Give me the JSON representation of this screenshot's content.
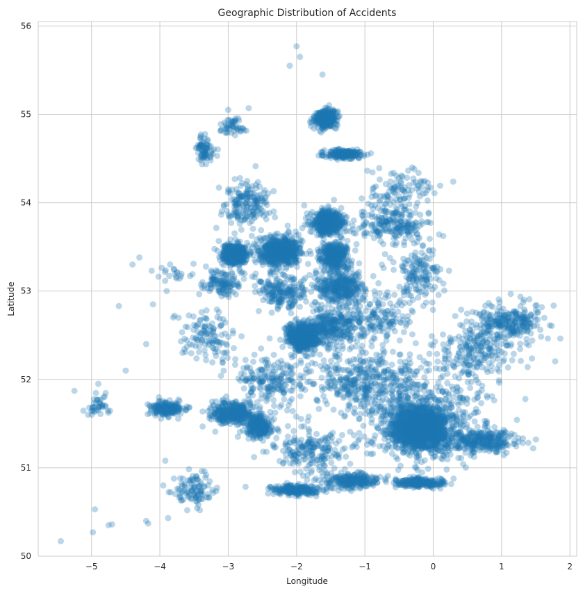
{
  "chart_data": {
    "type": "scatter",
    "title": "Geographic Distribution of Accidents",
    "xlabel": "Longitude",
    "ylabel": "Latitude",
    "xlim": [
      -5.78,
      2.1
    ],
    "ylim": [
      50.0,
      56.05
    ],
    "x_ticks": [
      -5,
      -4,
      -3,
      -2,
      -1,
      0,
      1,
      2
    ],
    "x_tick_labels": [
      "−5",
      "−4",
      "−3",
      "−2",
      "−1",
      "0",
      "1",
      "2"
    ],
    "y_ticks": [
      50,
      51,
      52,
      53,
      54,
      55,
      56
    ],
    "y_tick_labels": [
      "50",
      "51",
      "52",
      "53",
      "54",
      "55",
      "56"
    ],
    "grid": true,
    "marker_color": "#1f77b4",
    "marker_alpha": 0.3,
    "clusters": [
      {
        "lon": -0.2,
        "lat": 51.45,
        "count": 1800,
        "spread_lon": 0.35,
        "spread_lat": 0.22
      },
      {
        "lon": -0.15,
        "lat": 51.55,
        "count": 600,
        "spread_lon": 0.9,
        "spread_lat": 0.45
      },
      {
        "lon": 0.7,
        "lat": 51.3,
        "count": 300,
        "spread_lon": 0.55,
        "spread_lat": 0.12
      },
      {
        "lon": 1.1,
        "lat": 52.65,
        "count": 260,
        "spread_lon": 0.45,
        "spread_lat": 0.2
      },
      {
        "lon": 0.6,
        "lat": 52.3,
        "count": 220,
        "spread_lon": 0.6,
        "spread_lat": 0.3
      },
      {
        "lon": -1.9,
        "lat": 52.48,
        "count": 700,
        "spread_lon": 0.22,
        "spread_lat": 0.14
      },
      {
        "lon": -1.5,
        "lat": 52.6,
        "count": 250,
        "spread_lon": 0.35,
        "spread_lat": 0.2
      },
      {
        "lon": -2.25,
        "lat": 53.45,
        "count": 650,
        "spread_lon": 0.3,
        "spread_lat": 0.16
      },
      {
        "lon": -2.9,
        "lat": 53.42,
        "count": 400,
        "spread_lon": 0.2,
        "spread_lat": 0.12
      },
      {
        "lon": -1.55,
        "lat": 53.78,
        "count": 500,
        "spread_lon": 0.22,
        "spread_lat": 0.14
      },
      {
        "lon": -1.45,
        "lat": 53.4,
        "count": 400,
        "spread_lon": 0.2,
        "spread_lat": 0.15
      },
      {
        "lon": -1.4,
        "lat": 53.05,
        "count": 350,
        "spread_lon": 0.35,
        "spread_lat": 0.2
      },
      {
        "lon": -1.58,
        "lat": 54.95,
        "count": 350,
        "spread_lon": 0.15,
        "spread_lat": 0.1
      },
      {
        "lon": -1.3,
        "lat": 54.55,
        "count": 200,
        "spread_lon": 0.25,
        "spread_lat": 0.05
      },
      {
        "lon": -2.95,
        "lat": 51.62,
        "count": 350,
        "spread_lon": 0.3,
        "spread_lat": 0.12
      },
      {
        "lon": -3.9,
        "lat": 51.67,
        "count": 200,
        "spread_lon": 0.25,
        "spread_lat": 0.08
      },
      {
        "lon": -2.55,
        "lat": 51.47,
        "count": 250,
        "spread_lon": 0.2,
        "spread_lat": 0.12
      },
      {
        "lon": -2.0,
        "lat": 50.75,
        "count": 220,
        "spread_lon": 0.35,
        "spread_lat": 0.06
      },
      {
        "lon": -1.2,
        "lat": 50.85,
        "count": 250,
        "spread_lon": 0.4,
        "spread_lat": 0.08
      },
      {
        "lon": -0.2,
        "lat": 50.83,
        "count": 250,
        "spread_lon": 0.35,
        "spread_lat": 0.05
      },
      {
        "lon": -3.5,
        "lat": 50.75,
        "count": 100,
        "spread_lon": 0.3,
        "spread_lat": 0.2
      },
      {
        "lon": -4.9,
        "lat": 51.7,
        "count": 40,
        "spread_lon": 0.2,
        "spread_lat": 0.1
      },
      {
        "lon": -3.3,
        "lat": 52.5,
        "count": 120,
        "spread_lon": 0.4,
        "spread_lat": 0.3
      },
      {
        "lon": -3.1,
        "lat": 53.1,
        "count": 120,
        "spread_lon": 0.25,
        "spread_lat": 0.15
      },
      {
        "lon": -2.75,
        "lat": 54.0,
        "count": 180,
        "spread_lon": 0.35,
        "spread_lat": 0.25
      },
      {
        "lon": -3.35,
        "lat": 54.6,
        "count": 80,
        "spread_lon": 0.15,
        "spread_lat": 0.15
      },
      {
        "lon": -2.95,
        "lat": 54.85,
        "count": 50,
        "spread_lon": 0.2,
        "spread_lat": 0.1
      },
      {
        "lon": -0.6,
        "lat": 53.75,
        "count": 220,
        "spread_lon": 0.55,
        "spread_lat": 0.2
      },
      {
        "lon": -0.2,
        "lat": 53.2,
        "count": 150,
        "spread_lon": 0.35,
        "spread_lat": 0.3
      },
      {
        "lon": -0.5,
        "lat": 54.15,
        "count": 100,
        "spread_lon": 0.5,
        "spread_lat": 0.2
      },
      {
        "lon": -1.0,
        "lat": 52.0,
        "count": 400,
        "spread_lon": 0.9,
        "spread_lat": 0.35
      },
      {
        "lon": -2.4,
        "lat": 52.0,
        "count": 200,
        "spread_lon": 0.5,
        "spread_lat": 0.3
      },
      {
        "lon": -0.9,
        "lat": 52.7,
        "count": 200,
        "spread_lon": 0.6,
        "spread_lat": 0.3
      },
      {
        "lon": -2.2,
        "lat": 53.0,
        "count": 200,
        "spread_lon": 0.35,
        "spread_lat": 0.2
      },
      {
        "lon": -1.8,
        "lat": 51.2,
        "count": 200,
        "spread_lon": 0.6,
        "spread_lat": 0.25
      },
      {
        "lon": -3.8,
        "lat": 53.2,
        "count": 20,
        "spread_lon": 0.4,
        "spread_lat": 0.1
      }
    ],
    "outliers": [
      {
        "lon": -5.45,
        "lat": 50.17
      },
      {
        "lon": -4.98,
        "lat": 50.27
      },
      {
        "lon": -4.95,
        "lat": 50.53
      },
      {
        "lon": -4.75,
        "lat": 50.35
      },
      {
        "lon": -4.7,
        "lat": 50.36
      },
      {
        "lon": -4.17,
        "lat": 50.37
      },
      {
        "lon": -4.2,
        "lat": 50.4
      },
      {
        "lon": -3.88,
        "lat": 50.43
      },
      {
        "lon": -3.6,
        "lat": 50.52
      },
      {
        "lon": -5.05,
        "lat": 51.6
      },
      {
        "lon": -4.3,
        "lat": 53.38
      },
      {
        "lon": -4.4,
        "lat": 53.3
      },
      {
        "lon": -4.12,
        "lat": 53.23
      },
      {
        "lon": -3.85,
        "lat": 53.3
      },
      {
        "lon": -4.6,
        "lat": 52.83
      },
      {
        "lon": -4.1,
        "lat": 52.85
      },
      {
        "lon": -3.9,
        "lat": 53.0
      },
      {
        "lon": -2.0,
        "lat": 55.77
      },
      {
        "lon": -1.95,
        "lat": 55.65
      },
      {
        "lon": -2.1,
        "lat": 55.55
      },
      {
        "lon": -1.62,
        "lat": 55.45
      },
      {
        "lon": -3.0,
        "lat": 55.05
      },
      {
        "lon": -2.7,
        "lat": 55.07
      },
      {
        "lon": -3.0,
        "lat": 54.15
      },
      {
        "lon": -3.92,
        "lat": 51.08
      },
      {
        "lon": -3.95,
        "lat": 50.8
      },
      {
        "lon": -5.25,
        "lat": 51.87
      },
      {
        "lon": -4.9,
        "lat": 51.95
      },
      {
        "lon": -4.5,
        "lat": 52.1
      },
      {
        "lon": -4.2,
        "lat": 52.4
      }
    ]
  }
}
